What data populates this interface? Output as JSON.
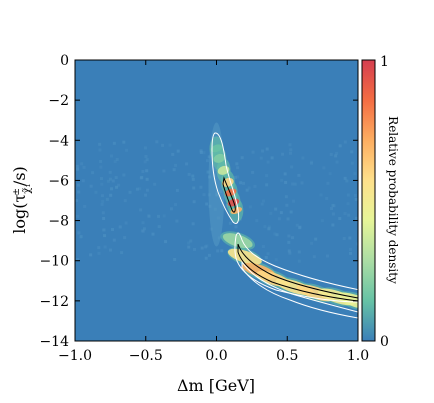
{
  "chart_data": {
    "type": "heatmap",
    "xlabel": "Δm [GeV]",
    "ylabel_parts": {
      "main": "log(τ",
      "sub": "χ̃₁",
      "sup": "±",
      "tail": "/s)"
    },
    "xlim": [
      -1.0,
      1.0
    ],
    "ylim": [
      -14,
      0
    ],
    "x_ticks": [
      -1.0,
      -0.5,
      0.0,
      0.5,
      1.0
    ],
    "x_tick_labels": [
      "−1.0",
      "−0.5",
      "0.0",
      "0.5",
      "1.0"
    ],
    "y_ticks": [
      0,
      -2,
      -4,
      -6,
      -8,
      -10,
      -12,
      -14
    ],
    "y_tick_labels": [
      "0",
      "−2",
      "−4",
      "−6",
      "−8",
      "−10",
      "−12",
      "−14"
    ],
    "colorbar": {
      "label": "Relative probability density",
      "min_label": "0",
      "max_label": "1",
      "colormap": [
        "#3a7fb8",
        "#66c2a5",
        "#abdda4",
        "#e6f598",
        "#fee08b",
        "#fdae61",
        "#f46d43",
        "#d53e4f"
      ]
    },
    "background_color": "#3a7fb8",
    "grid": false,
    "upper_band": [
      {
        "x": 0.0,
        "y": -4.4,
        "w": 0.05,
        "d": 0.15
      },
      {
        "x": 0.02,
        "y": -4.9,
        "w": 0.06,
        "d": 0.2
      },
      {
        "x": 0.05,
        "y": -5.5,
        "w": 0.06,
        "d": 0.35
      },
      {
        "x": 0.08,
        "y": -6.1,
        "w": 0.06,
        "d": 0.6
      },
      {
        "x": 0.1,
        "y": -6.6,
        "w": 0.05,
        "d": 0.85
      },
      {
        "x": 0.12,
        "y": -7.1,
        "w": 0.05,
        "d": 0.95
      },
      {
        "x": 0.14,
        "y": -7.5,
        "w": 0.04,
        "d": 0.7
      }
    ],
    "lower_band": [
      {
        "x": 0.15,
        "y": -9.0,
        "w": 0.22,
        "d": 0.25
      },
      {
        "x": 0.2,
        "y": -9.8,
        "w": 0.25,
        "d": 0.55
      },
      {
        "x": 0.3,
        "y": -10.5,
        "w": 0.25,
        "d": 0.7
      },
      {
        "x": 0.4,
        "y": -10.9,
        "w": 0.25,
        "d": 0.6
      },
      {
        "x": 0.55,
        "y": -11.3,
        "w": 0.28,
        "d": 0.55
      },
      {
        "x": 0.7,
        "y": -11.6,
        "w": 0.28,
        "d": 0.6
      },
      {
        "x": 0.85,
        "y": -11.8,
        "w": 0.28,
        "d": 0.5
      },
      {
        "x": 0.98,
        "y": -12.0,
        "w": 0.28,
        "d": 0.45
      }
    ]
  }
}
